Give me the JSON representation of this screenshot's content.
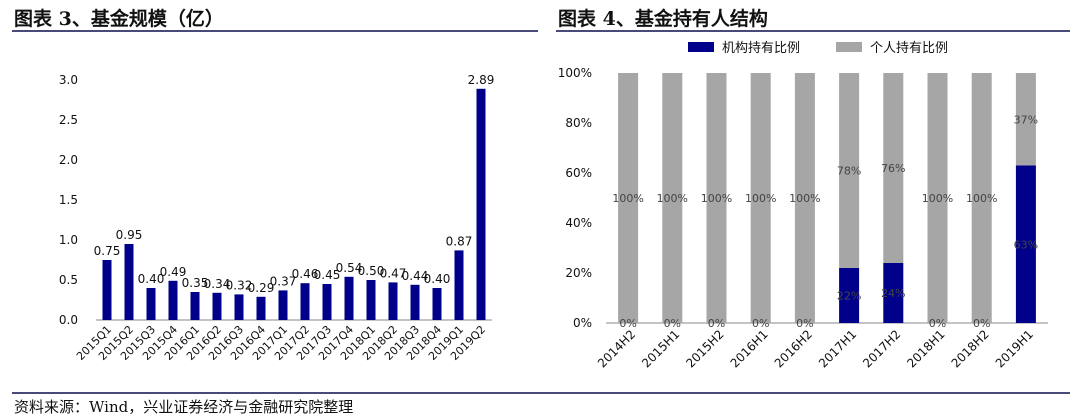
{
  "left_title": "图表 3、基金规模（亿）",
  "right_title": "图表 4、基金持有人结构",
  "source": "资料来源：Wind，兴业证券经济与金融研究院整理",
  "chart_data": [
    {
      "type": "bar",
      "title": "图表 3、基金规模（亿）",
      "categories": [
        "2015Q1",
        "2015Q2",
        "2015Q3",
        "2015Q4",
        "2016Q1",
        "2016Q2",
        "2016Q3",
        "2016Q4",
        "2017Q1",
        "2017Q2",
        "2017Q3",
        "2017Q4",
        "2018Q1",
        "2018Q2",
        "2018Q3",
        "2018Q4",
        "2019Q1",
        "2019Q2"
      ],
      "values": [
        0.75,
        0.95,
        0.4,
        0.49,
        0.35,
        0.34,
        0.32,
        0.29,
        0.37,
        0.46,
        0.45,
        0.54,
        0.5,
        0.47,
        0.44,
        0.4,
        0.87,
        2.89
      ],
      "data_labels": [
        "0.75",
        "0.95",
        "0.40",
        "0.49",
        "0.35",
        "0.34",
        "0.32",
        "0.29",
        "0.37",
        "0.46",
        "0.45",
        "0.54",
        "0.50",
        "0.47",
        "0.44",
        "0.40",
        "0.87",
        "2.89"
      ],
      "yticks": [
        "0.0",
        "0.5",
        "1.0",
        "1.5",
        "2.0",
        "2.5",
        "3.0"
      ],
      "ylim": [
        0,
        3.0
      ],
      "color": "#00008b",
      "grid": false
    },
    {
      "type": "bar",
      "stacked": true,
      "percent": true,
      "title": "图表 4、基金持有人结构",
      "categories": [
        "2014H2",
        "2015H1",
        "2015H2",
        "2016H1",
        "2016H2",
        "2017H1",
        "2017H2",
        "2018H1",
        "2018H2",
        "2019H1"
      ],
      "series": [
        {
          "name": "机构持有比例",
          "color": "#00008b",
          "values": [
            0,
            0,
            0,
            0,
            0,
            22,
            24,
            0,
            0,
            63
          ],
          "labels": [
            "0%",
            "0%",
            "0%",
            "0%",
            "0%",
            "22%",
            "24%",
            "0%",
            "0%",
            "63%"
          ]
        },
        {
          "name": "个人持有比例",
          "color": "#a6a6a6",
          "values": [
            100,
            100,
            100,
            100,
            100,
            78,
            76,
            100,
            100,
            37
          ],
          "labels": [
            "100%",
            "100%",
            "100%",
            "100%",
            "100%",
            "78%",
            "76%",
            "100%",
            "100%",
            "37%"
          ]
        }
      ],
      "yticks": [
        "0%",
        "20%",
        "40%",
        "60%",
        "80%",
        "100%"
      ],
      "ylim": [
        0,
        100
      ],
      "legend": "top",
      "grid": false
    }
  ]
}
